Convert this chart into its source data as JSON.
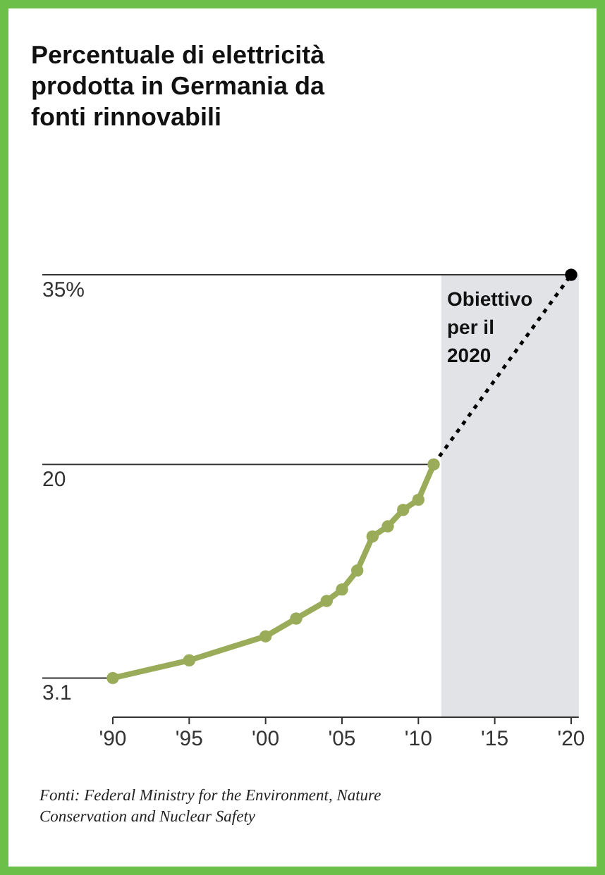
{
  "chart_data": {
    "type": "line",
    "title": "Percentuale di elettricità prodotta in Germania da fonti rinnovabili",
    "xlim": [
      1990,
      2020.5
    ],
    "ylim": [
      0,
      35
    ],
    "xticks": [
      {
        "value": 1990,
        "label": "'90"
      },
      {
        "value": 1995,
        "label": "'95"
      },
      {
        "value": 2000,
        "label": "'00"
      },
      {
        "value": 2005,
        "label": "'05"
      },
      {
        "value": 2010,
        "label": "'10"
      },
      {
        "value": 2015,
        "label": "'15"
      },
      {
        "value": 2020,
        "label": "'20"
      }
    ],
    "yticks": [
      3.1,
      20,
      {
        "value": 35,
        "label": "35%"
      }
    ],
    "grid": "y",
    "series": [
      {
        "color": "#9aab5a",
        "marker": "circle",
        "line_style": "solid",
        "x": [
          1990,
          1995,
          2000,
          2002,
          2004,
          2005,
          2006,
          2007,
          2008,
          2009,
          2010,
          2011
        ],
        "values": [
          3.1,
          4.5,
          6.4,
          7.8,
          9.2,
          10.1,
          11.6,
          14.3,
          15.1,
          16.4,
          17.2,
          20
        ]
      },
      {
        "color": "#000000",
        "marker": "none",
        "line_style": "dotted",
        "x": [
          2011,
          2020
        ],
        "values": [
          20,
          35
        ]
      },
      {
        "type": "scatter",
        "color": "#000000",
        "marker": "circle",
        "x": [
          2020
        ],
        "values": [
          35
        ]
      }
    ],
    "bands": [
      {
        "axis": "x",
        "from": 2011.5,
        "to": 2020.5,
        "color": "#e2e3e7"
      }
    ],
    "annotations": [
      {
        "text": "Obiettivo per il 2020",
        "x": 2020,
        "y": 35
      },
      "Fonti: Federal Ministry for the Environment, Nature Conservation and Nuclear Safety"
    ]
  }
}
